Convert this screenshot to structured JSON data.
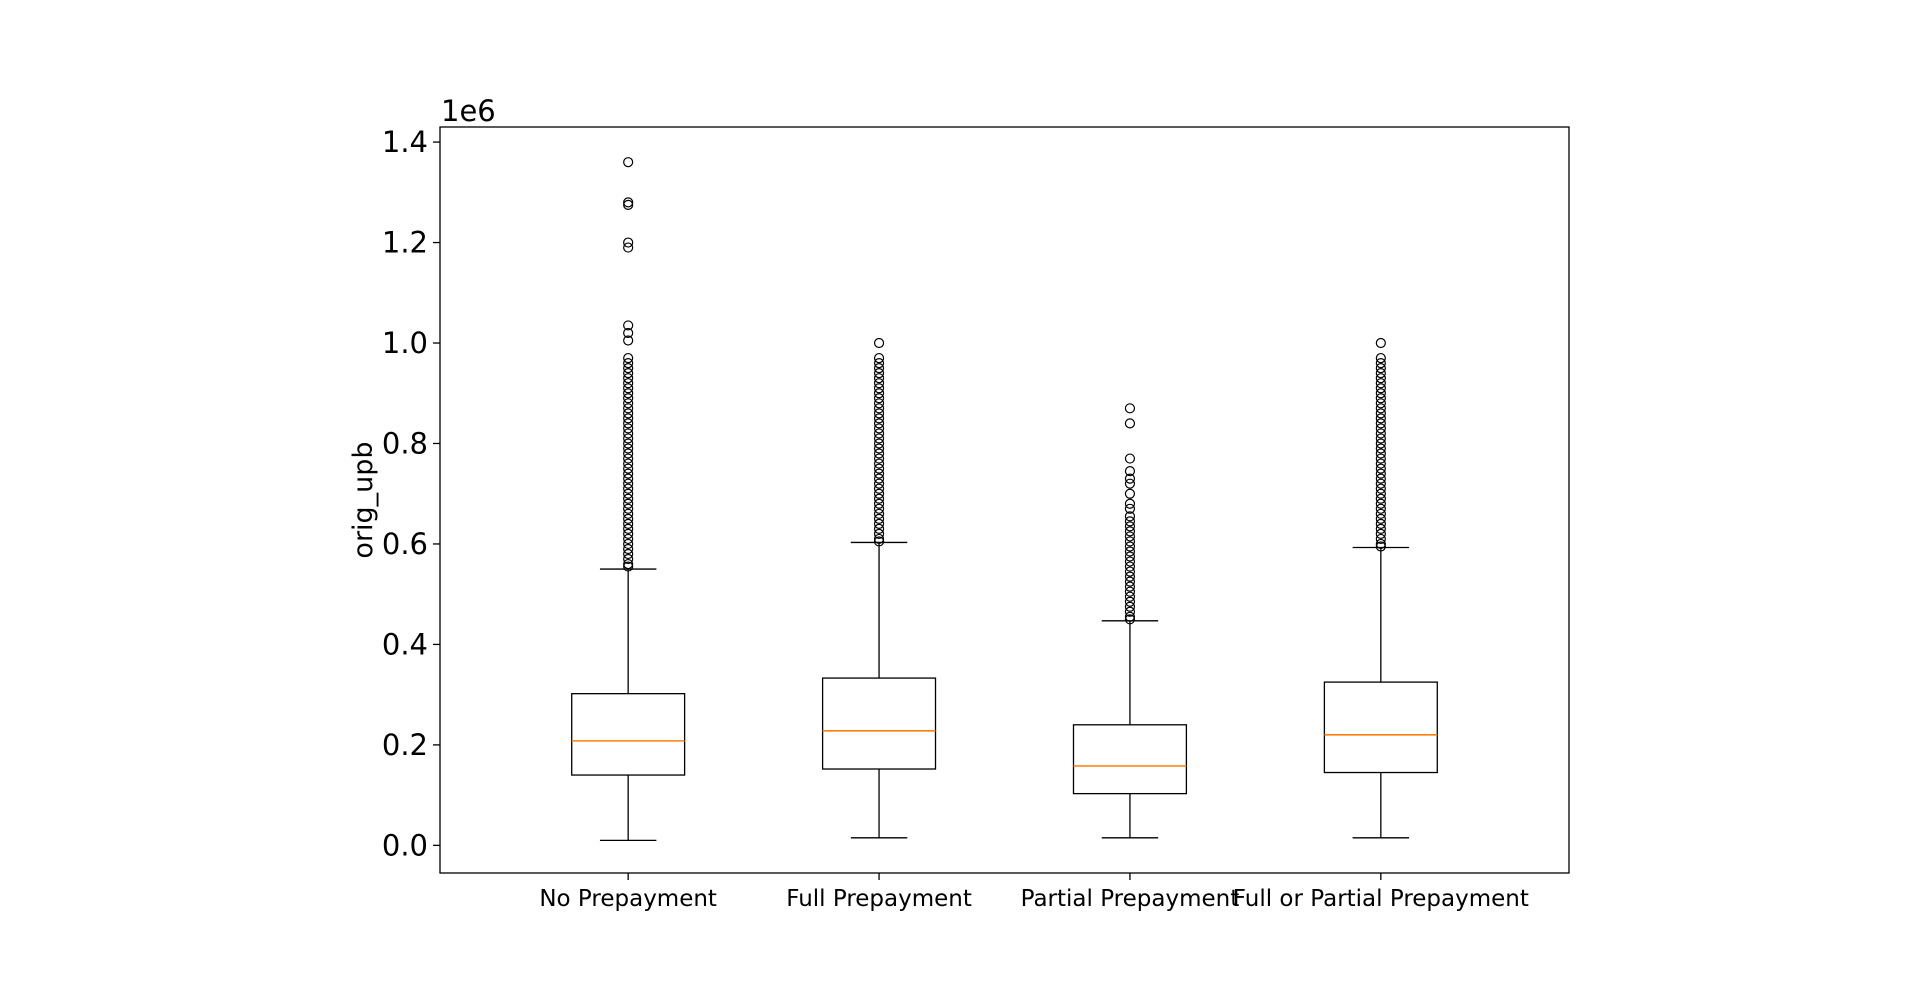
{
  "chart_data": {
    "type": "boxplot",
    "title": "",
    "xlabel": "",
    "ylabel": "orig_upb",
    "y_scale_label": "1e6",
    "ylim": [
      -0.055,
      1.43
    ],
    "y_ticks": [
      0.0,
      0.2,
      0.4,
      0.6,
      0.8,
      1.0,
      1.2,
      1.4
    ],
    "y_tick_labels": [
      "0.0",
      "0.2",
      "0.4",
      "0.6",
      "0.8",
      "1.0",
      "1.2",
      "1.4"
    ],
    "grid": false,
    "legend": "none",
    "colors": {
      "box": "#000000",
      "median": "#ff7f0e"
    },
    "categories": [
      "No Prepayment",
      "Full Prepayment",
      "Partial Prepayment",
      "Full or Partial Prepayment"
    ],
    "series": [
      {
        "whisker_low": 0.01,
        "q1": 0.14,
        "median": 0.208,
        "q3": 0.302,
        "whisker_high": 0.55,
        "outliers": [
          1.36,
          1.28,
          1.275,
          1.2,
          1.19,
          1.035,
          1.02,
          1.005,
          0.97,
          0.96,
          0.95,
          0.94,
          0.93,
          0.92,
          0.91,
          0.9,
          0.89,
          0.88,
          0.87,
          0.86,
          0.85,
          0.84,
          0.83,
          0.82,
          0.81,
          0.8,
          0.79,
          0.78,
          0.77,
          0.76,
          0.75,
          0.74,
          0.73,
          0.72,
          0.71,
          0.7,
          0.69,
          0.68,
          0.67,
          0.66,
          0.65,
          0.64,
          0.63,
          0.62,
          0.61,
          0.6,
          0.59,
          0.58,
          0.57,
          0.56,
          0.555
        ]
      },
      {
        "whisker_low": 0.015,
        "q1": 0.152,
        "median": 0.228,
        "q3": 0.333,
        "whisker_high": 0.603,
        "outliers": [
          1.0,
          0.97,
          0.96,
          0.95,
          0.94,
          0.93,
          0.92,
          0.91,
          0.9,
          0.89,
          0.88,
          0.87,
          0.86,
          0.85,
          0.84,
          0.83,
          0.82,
          0.81,
          0.8,
          0.79,
          0.78,
          0.77,
          0.76,
          0.75,
          0.74,
          0.73,
          0.72,
          0.71,
          0.7,
          0.69,
          0.68,
          0.67,
          0.66,
          0.65,
          0.64,
          0.63,
          0.62,
          0.61,
          0.605
        ]
      },
      {
        "whisker_low": 0.015,
        "q1": 0.103,
        "median": 0.158,
        "q3": 0.24,
        "whisker_high": 0.447,
        "outliers": [
          0.87,
          0.84,
          0.77,
          0.745,
          0.73,
          0.72,
          0.7,
          0.68,
          0.67,
          0.655,
          0.645,
          0.635,
          0.625,
          0.615,
          0.605,
          0.595,
          0.585,
          0.575,
          0.565,
          0.555,
          0.545,
          0.535,
          0.525,
          0.515,
          0.505,
          0.495,
          0.485,
          0.475,
          0.465,
          0.455,
          0.45
        ]
      },
      {
        "whisker_low": 0.015,
        "q1": 0.145,
        "median": 0.22,
        "q3": 0.325,
        "whisker_high": 0.593,
        "outliers": [
          1.0,
          0.97,
          0.96,
          0.95,
          0.94,
          0.93,
          0.92,
          0.91,
          0.9,
          0.89,
          0.88,
          0.87,
          0.86,
          0.85,
          0.84,
          0.83,
          0.82,
          0.81,
          0.8,
          0.79,
          0.78,
          0.77,
          0.76,
          0.75,
          0.74,
          0.73,
          0.72,
          0.71,
          0.7,
          0.69,
          0.68,
          0.67,
          0.66,
          0.65,
          0.64,
          0.63,
          0.62,
          0.61,
          0.6,
          0.595
        ]
      }
    ]
  }
}
